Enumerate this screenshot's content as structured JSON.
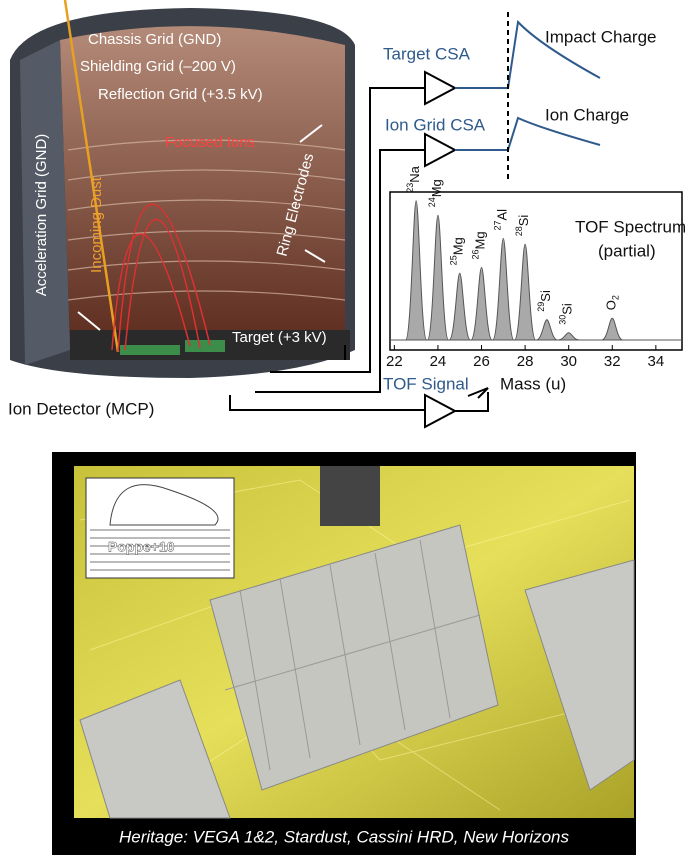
{
  "instrument": {
    "labels": {
      "chassis_grid": "Chassis Grid (GND)",
      "shielding_grid": "Shielding Grid (–200 V)",
      "reflection_grid": "Reflection Grid (+3.5 kV)",
      "focused_ions": "Focused Ions",
      "acceleration_grid": "Acceleration Grid (GND)",
      "incoming_dust": "Incoming Dust",
      "ring_electrodes": "Ring Electrodes",
      "target": "Target (+3 kV)",
      "ion_detector": "Ion Detector (MCP)"
    }
  },
  "electronics": {
    "target_csa": "Target CSA",
    "impact_charge": "Impact Charge",
    "ion_grid_csa": "Ion Grid CSA",
    "ion_charge": "Ion Charge",
    "tof_signal": "TOF Signal"
  },
  "chart_data": {
    "type": "spectrum",
    "title": "TOF Spectrum",
    "subtitle": "(partial)",
    "x_label": "Mass (u)",
    "xlim": [
      21.8,
      35.2
    ],
    "xticks": [
      22,
      24,
      26,
      28,
      30,
      32,
      34
    ],
    "color": "#a9a9a9",
    "peaks": [
      {
        "isotope": "23",
        "element": "Na",
        "x": 23,
        "height": 0.96
      },
      {
        "isotope": "24",
        "element": "Mg",
        "x": 24,
        "height": 0.86
      },
      {
        "isotope": "25",
        "element": "Mg",
        "x": 25,
        "height": 0.46
      },
      {
        "isotope": "26",
        "element": "Mg",
        "x": 26,
        "height": 0.5
      },
      {
        "isotope": "27",
        "element": "Al",
        "x": 27,
        "height": 0.7
      },
      {
        "isotope": "28",
        "element": "Si",
        "x": 28,
        "height": 0.66
      },
      {
        "isotope": "29",
        "element": "Si",
        "x": 29,
        "height": 0.14
      },
      {
        "isotope": "30",
        "element": "Si",
        "x": 30,
        "height": 0.05
      },
      {
        "isotope": "",
        "element": "O",
        "subscript": "2",
        "x": 32,
        "height": 0.15
      }
    ]
  },
  "photo": {
    "inset_label": "Poppe+10",
    "caption": "Heritage: VEGA 1&2, Stardust, Cassini HRD, New Horizons"
  }
}
